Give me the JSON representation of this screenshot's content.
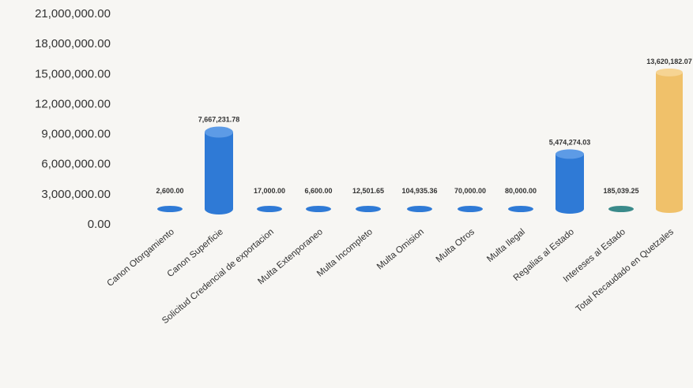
{
  "chart_data": {
    "type": "bar",
    "bar_style": "cylinder",
    "title": "",
    "xlabel": "",
    "ylabel": "",
    "ylim": [
      0,
      21000000
    ],
    "y_tick_labels": [
      "0.00",
      "3,000,000.00",
      "6,000,000.00",
      "9,000,000.00",
      "12,000,000.00",
      "15,000,000.00",
      "18,000,000.00",
      "21,000,000.00"
    ],
    "grid": false,
    "legend": "none",
    "categories": [
      "Canon Otorgamiento",
      "Canon Superficie",
      "Solicitud Credencial de exportacion",
      "Multa Extenporaneo",
      "Multa Incompleto",
      "Multa Omision",
      "Multa Otros",
      "Multa Ilegal",
      "Regalias al Estado",
      "Intereses al Estado",
      "Total Recaudado en Quetzales"
    ],
    "values": [
      2600,
      7667231.78,
      17000,
      6600,
      12501.65,
      104935.36,
      70000,
      80000,
      5474274.03,
      185039.25,
      13620182.07
    ],
    "data_labels": [
      "2,600.00",
      "7,667,231.78",
      "17,000.00",
      "6,600.00",
      "12,501.65",
      "104,935.36",
      "70,000.00",
      "80,000.00",
      "5,474,274.03",
      "185,039.25",
      "13,620,182.07"
    ],
    "colors": {
      "bar": "#2f7ad6",
      "bar_top": "#5d9be6",
      "total_bar": "#f0c16a",
      "total_top": "#f6d493",
      "interest_bar": "#3a8a8a"
    }
  }
}
